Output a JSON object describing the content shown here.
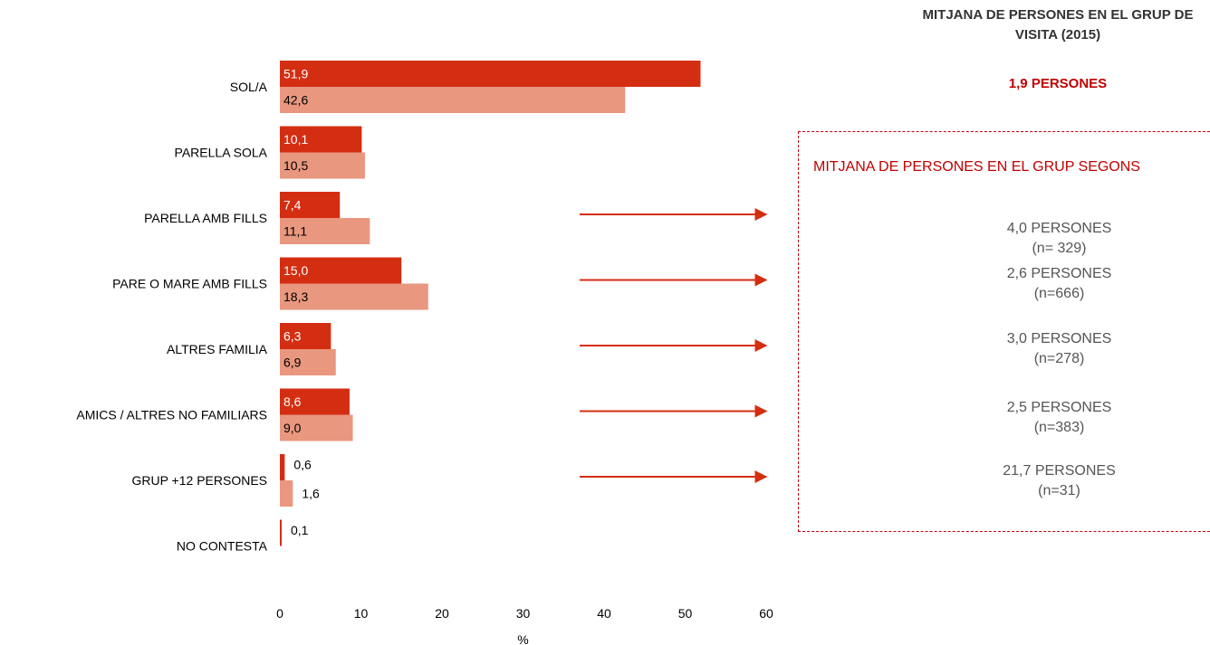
{
  "header": {
    "title": "MITJANA DE PERSONES EN EL GRUP DE VISITA (2015)",
    "overall_average": "1,9 PERSONES"
  },
  "group_box": {
    "title": "MITJANA DE PERSONES EN EL GRUP SEGONS",
    "items": [
      {
        "value": "4,0 PERSONES",
        "n": "(n= 329)"
      },
      {
        "value": "2,6 PERSONES",
        "n": "(n=666)"
      },
      {
        "value": "3,0 PERSONES",
        "n": "(n=278)"
      },
      {
        "value": "2,5  PERSONES",
        "n": "(n=383)"
      },
      {
        "value": "21,7 PERSONES",
        "n": "(n=31)"
      }
    ]
  },
  "colors": {
    "series_dark": "#d42e12",
    "series_light": "#e9977f",
    "accent_text": "#c00000",
    "arrow": "#d42e12"
  },
  "chart_data": {
    "type": "bar",
    "orientation": "horizontal",
    "categories": [
      "SOL/A",
      "PARELLA SOLA",
      "PARELLA AMB FILLS",
      "PARE O MARE AMB FILLS",
      "ALTRES FAMILIA",
      "AMICS / ALTRES NO FAMILIARS",
      "GRUP +12 PERSONES",
      "NO CONTESTA"
    ],
    "series": [
      {
        "values": [
          51.9,
          10.1,
          7.4,
          15.0,
          6.3,
          8.6,
          0.6,
          0.1
        ],
        "labels": [
          "51,9",
          "10,1",
          "7,4",
          "15,0",
          "6,3",
          "8,6",
          "0,6",
          "0,1"
        ]
      },
      {
        "values": [
          42.6,
          10.5,
          11.1,
          18.3,
          6.9,
          9.0,
          1.6,
          null
        ],
        "labels": [
          "42,6",
          "10,5",
          "11,1",
          "18,3",
          "6,9",
          "9,0",
          "1,6",
          ""
        ]
      }
    ],
    "xlabel": "%",
    "xlim": [
      0,
      60
    ],
    "xticks": [
      "0",
      "10",
      "20",
      "30",
      "40",
      "50",
      "60"
    ],
    "grid": false,
    "arrows_from_categories": [
      "PARELLA AMB FILLS",
      "PARE O MARE AMB FILLS",
      "ALTRES FAMILIA",
      "AMICS / ALTRES NO FAMILIARS",
      "GRUP +12 PERSONES"
    ]
  }
}
